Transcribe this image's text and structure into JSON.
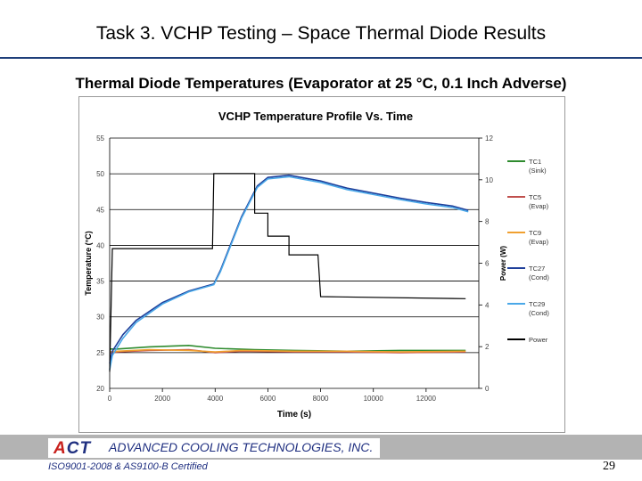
{
  "slide": {
    "title": "Task 3. VCHP Testing – Space Thermal Diode Results",
    "subtitle": "Thermal Diode Temperatures (Evaporator at 25 °C, 0.1 Inch Adverse)"
  },
  "footer": {
    "logo_text": "ACT",
    "company": "ADVANCED COOLING TECHNOLOGIES, INC.",
    "certification": "ISO9001-2008 & AS9100-B Certified",
    "page_number": "29"
  },
  "colors": {
    "title_rule": "#1f3f7a",
    "footer_bar": "#b3b3b3",
    "brand_blue": "#1f2f80",
    "brand_red": "#c8201c"
  },
  "chart_data": {
    "type": "line",
    "title": "VCHP Temperature Profile Vs. Time",
    "xlabel": "Time (s)",
    "ylabel": "Temperature (°C)",
    "y2label": "Power (W)",
    "xlim": [
      0,
      14000
    ],
    "ylim": [
      20,
      55
    ],
    "y2lim": [
      0,
      12
    ],
    "x_ticks": [
      0,
      2000,
      4000,
      6000,
      8000,
      10000,
      12000
    ],
    "y_ticks": [
      20,
      25,
      30,
      35,
      40,
      45,
      50,
      55
    ],
    "y2_ticks": [
      0,
      2,
      4,
      6,
      8,
      10,
      12
    ],
    "grid": "horizontal",
    "legend_position": "right",
    "series": [
      {
        "name": "TC1 (Sink)",
        "axis": "left",
        "color": "#2e8b2e",
        "x": [
          0,
          300,
          1500,
          3000,
          4000,
          5500,
          7000,
          9000,
          11000,
          13500
        ],
        "y": [
          25.5,
          25.5,
          25.8,
          26.0,
          25.6,
          25.4,
          25.3,
          25.2,
          25.3,
          25.3
        ]
      },
      {
        "name": "TC5 (Evap)",
        "axis": "left",
        "color": "#c0504d",
        "x": [
          0,
          300,
          1500,
          3000,
          4000,
          5000,
          7000,
          9000,
          11000,
          13500
        ],
        "y": [
          25.0,
          25.1,
          25.3,
          25.4,
          25.0,
          25.2,
          25.1,
          25.1,
          25.0,
          25.1
        ]
      },
      {
        "name": "TC9 (Evap)",
        "axis": "left",
        "color": "#f0a030",
        "x": [
          0,
          300,
          1500,
          3000,
          4000,
          5000,
          7000,
          9000,
          11000,
          13500
        ],
        "y": [
          25.1,
          25.2,
          25.4,
          25.3,
          25.1,
          25.3,
          25.2,
          25.2,
          25.1,
          25.2
        ]
      },
      {
        "name": "TC27 (Cond)",
        "axis": "left",
        "color": "#1f3f9a",
        "x": [
          0,
          100,
          500,
          1000,
          2000,
          3000,
          3950,
          4200,
          5000,
          5600,
          6000,
          6800,
          8000,
          9000,
          10000,
          11000,
          12000,
          13000,
          13600
        ],
        "y": [
          23.5,
          25.2,
          27.5,
          29.5,
          32.0,
          33.6,
          34.6,
          36.5,
          44.0,
          48.3,
          49.5,
          49.8,
          49.0,
          48.0,
          47.3,
          46.6,
          46.0,
          45.5,
          44.9
        ]
      },
      {
        "name": "TC29 (Cond)",
        "axis": "left",
        "color": "#4aa8e8",
        "x": [
          0,
          100,
          500,
          1000,
          2000,
          3000,
          3950,
          4200,
          5000,
          5600,
          6000,
          6800,
          8000,
          9000,
          10000,
          11000,
          12000,
          13000,
          13600
        ],
        "y": [
          22.6,
          24.6,
          27.0,
          29.2,
          31.8,
          33.5,
          34.5,
          36.3,
          43.8,
          48.1,
          49.3,
          49.6,
          48.8,
          47.8,
          47.1,
          46.4,
          45.8,
          45.3,
          44.7
        ]
      },
      {
        "name": "Power",
        "axis": "right",
        "color": "#000000",
        "x": [
          0,
          100,
          1000,
          3900,
          3950,
          4000,
          5400,
          5500,
          5500,
          6000,
          6000,
          6800,
          6800,
          7900,
          8000,
          13500
        ],
        "y": [
          0.8,
          6.7,
          6.7,
          6.7,
          10.3,
          10.3,
          10.3,
          10.3,
          8.4,
          8.4,
          7.3,
          7.3,
          6.4,
          6.4,
          4.4,
          4.3
        ]
      }
    ]
  }
}
